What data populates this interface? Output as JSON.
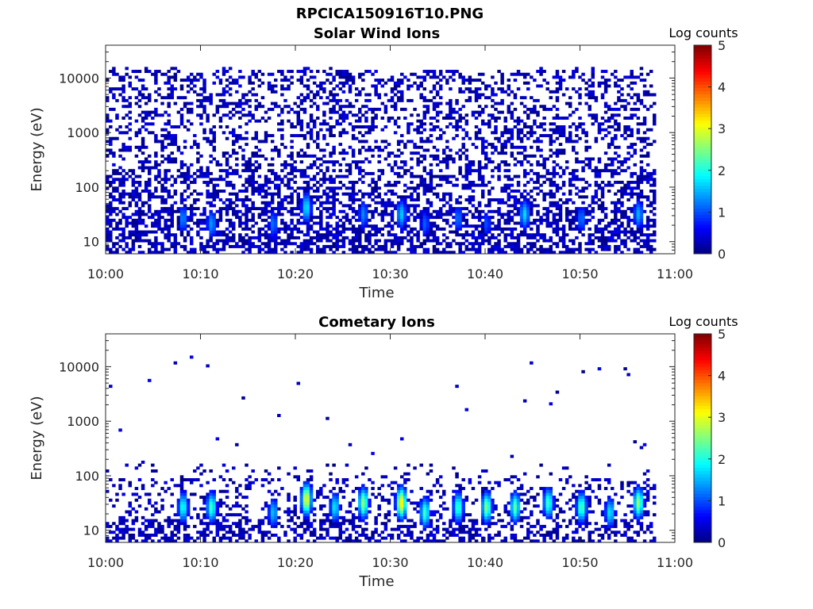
{
  "figure_title": "RPCICA150916T10.PNG",
  "chart_data": [
    {
      "type": "heatmap",
      "title": "Solar Wind Ions",
      "xlabel": "Time",
      "ylabel": "Energy (eV)",
      "x_ticks": [
        "10:00",
        "10:10",
        "10:20",
        "10:30",
        "10:40",
        "10:50",
        "11:00"
      ],
      "x_range": [
        "10:00",
        "11:00"
      ],
      "y_scale": "log",
      "y_ticks": [
        "10",
        "100",
        "1000",
        "10000"
      ],
      "y_range": [
        6,
        40000
      ],
      "data_time_range": [
        "10:00",
        "10:58"
      ],
      "colorbar": {
        "label": "Log counts",
        "ticks": [
          "0",
          "1",
          "2",
          "3",
          "4",
          "5"
        ],
        "range": [
          0,
          5
        ],
        "colormap": "jet"
      },
      "background": "scattered low counts (~0-0.5) across 10-15000 eV",
      "features": [
        {
          "time": "10:08",
          "energy_eV": 25,
          "log_counts": 1.3
        },
        {
          "time": "10:11",
          "energy_eV": 20,
          "log_counts": 1.4
        },
        {
          "time": "10:17.5",
          "energy_eV": 20,
          "log_counts": 1.2
        },
        {
          "time": "10:21",
          "energy_eV": 40,
          "log_counts": 1.8
        },
        {
          "time": "10:27",
          "energy_eV": 30,
          "log_counts": 1.3
        },
        {
          "time": "10:31",
          "energy_eV": 30,
          "log_counts": 1.6
        },
        {
          "time": "10:33.5",
          "energy_eV": 20,
          "log_counts": 1.1
        },
        {
          "time": "10:37",
          "energy_eV": 25,
          "log_counts": 1.2
        },
        {
          "time": "10:40",
          "energy_eV": 20,
          "log_counts": 1.0
        },
        {
          "time": "10:44",
          "energy_eV": 30,
          "log_counts": 1.7
        },
        {
          "time": "10:50",
          "energy_eV": 25,
          "log_counts": 1.2
        },
        {
          "time": "10:56",
          "energy_eV": 30,
          "log_counts": 1.5
        }
      ]
    },
    {
      "type": "heatmap",
      "title": "Cometary Ions",
      "xlabel": "Time",
      "ylabel": "Energy (eV)",
      "x_ticks": [
        "10:00",
        "10:10",
        "10:20",
        "10:30",
        "10:40",
        "10:50",
        "11:00"
      ],
      "x_range": [
        "10:00",
        "11:00"
      ],
      "y_scale": "log",
      "y_ticks": [
        "10",
        "100",
        "1000",
        "10000"
      ],
      "y_range": [
        6,
        40000
      ],
      "data_time_range": [
        "10:00",
        "10:58"
      ],
      "colorbar": {
        "label": "Log counts",
        "ticks": [
          "0",
          "1",
          "2",
          "3",
          "4",
          "5"
        ],
        "range": [
          0,
          5
        ],
        "colormap": "jet"
      },
      "background": "sparse isolated low counts above 300 eV; dense low-count band 6-150 eV",
      "features": [
        {
          "time": "10:08",
          "energy_eV": 25,
          "log_counts": 2.0
        },
        {
          "time": "10:11",
          "energy_eV": 25,
          "log_counts": 2.2
        },
        {
          "time": "10:17.5",
          "energy_eV": 20,
          "log_counts": 1.6
        },
        {
          "time": "10:21",
          "energy_eV": 35,
          "log_counts": 3.1
        },
        {
          "time": "10:24",
          "energy_eV": 25,
          "log_counts": 1.8
        },
        {
          "time": "10:27",
          "energy_eV": 30,
          "log_counts": 2.6
        },
        {
          "time": "10:31",
          "energy_eV": 30,
          "log_counts": 3.2
        },
        {
          "time": "10:33.5",
          "energy_eV": 20,
          "log_counts": 2.2
        },
        {
          "time": "10:37",
          "energy_eV": 25,
          "log_counts": 2.2
        },
        {
          "time": "10:40",
          "energy_eV": 25,
          "log_counts": 2.5
        },
        {
          "time": "10:43",
          "energy_eV": 25,
          "log_counts": 2.3
        },
        {
          "time": "10:46.5",
          "energy_eV": 30,
          "log_counts": 2.2
        },
        {
          "time": "10:50",
          "energy_eV": 25,
          "log_counts": 2.3
        },
        {
          "time": "10:53",
          "energy_eV": 20,
          "log_counts": 1.8
        },
        {
          "time": "10:56",
          "energy_eV": 30,
          "log_counts": 2.6
        }
      ]
    }
  ]
}
